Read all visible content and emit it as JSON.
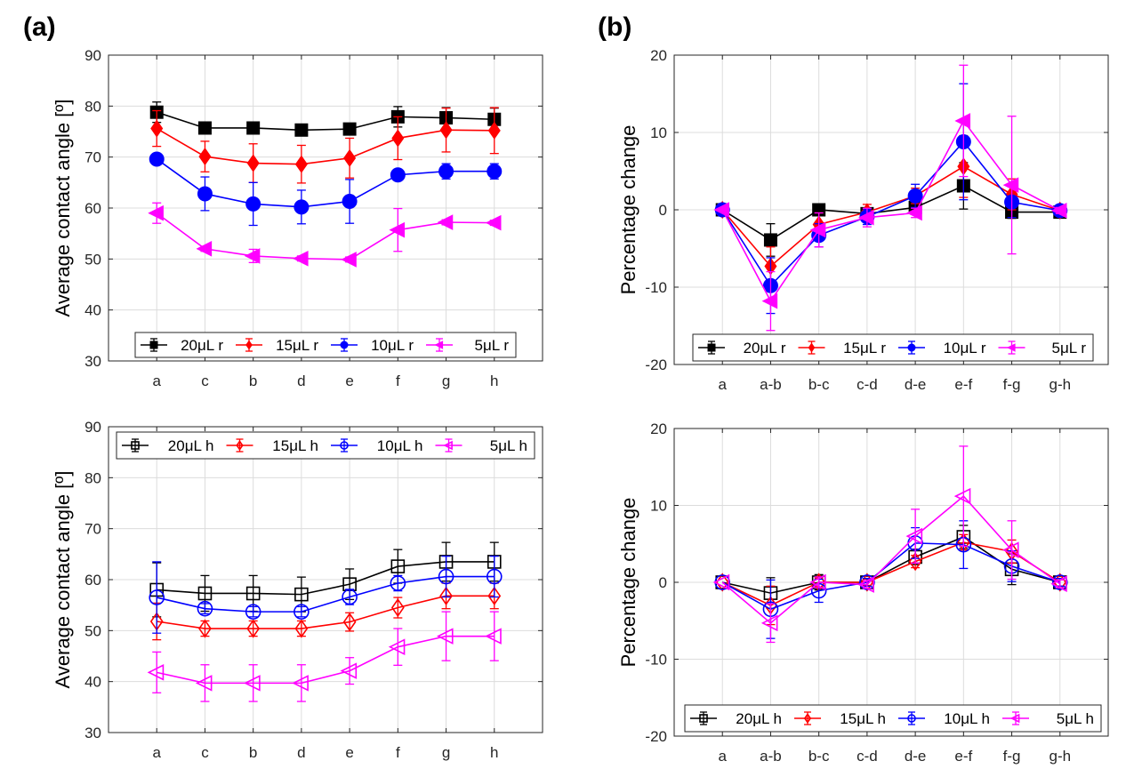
{
  "panel_labels": {
    "a": "(a)",
    "b": "(b)"
  },
  "chart_data": [
    {
      "id": "a_top",
      "type": "line",
      "ylabel": "Average contact angle [º]",
      "xlabel": "",
      "categories": [
        "a",
        "c",
        "b",
        "d",
        "e",
        "f",
        "g",
        "h"
      ],
      "ylim": [
        30,
        90
      ],
      "yticks": [
        30,
        40,
        50,
        60,
        70,
        80,
        90
      ],
      "grid": true,
      "legend_position": "bottom",
      "series": [
        {
          "name": "20μL r",
          "color": "#000000",
          "marker": "square",
          "filled": true,
          "values": [
            78.8,
            75.7,
            75.7,
            75.3,
            75.5,
            77.9,
            77.7,
            77.4
          ],
          "errors": [
            2.0,
            0.5,
            0.5,
            0.5,
            0.6,
            2.0,
            2.0,
            2.2
          ]
        },
        {
          "name": "15μL r",
          "color": "#ff0000",
          "marker": "diamond",
          "filled": true,
          "values": [
            75.6,
            70.1,
            68.8,
            68.6,
            69.8,
            73.7,
            75.3,
            75.2
          ],
          "errors": [
            3.5,
            3.0,
            3.8,
            3.7,
            3.9,
            4.2,
            4.3,
            4.5
          ]
        },
        {
          "name": "10μL r",
          "color": "#0000ff",
          "marker": "circle",
          "filled": true,
          "values": [
            69.6,
            62.8,
            60.8,
            60.2,
            61.3,
            66.5,
            67.2,
            67.2
          ],
          "errors": [
            0.6,
            3.3,
            4.2,
            3.3,
            4.3,
            0.6,
            1.5,
            1.5
          ]
        },
        {
          "name": "5μL r",
          "color": "#ff00ff",
          "marker": "triangle-left",
          "filled": true,
          "values": [
            59.0,
            52.0,
            50.6,
            50.1,
            49.9,
            55.7,
            57.2,
            57.1
          ],
          "errors": [
            2.0,
            0.5,
            1.3,
            0.5,
            0.5,
            4.2,
            0.5,
            0.5
          ]
        }
      ]
    },
    {
      "id": "a_bottom",
      "type": "line",
      "ylabel": "Average contact angle [º]",
      "xlabel": "",
      "categories": [
        "a",
        "c",
        "b",
        "d",
        "e",
        "f",
        "g",
        "h"
      ],
      "ylim": [
        30,
        90
      ],
      "yticks": [
        30,
        40,
        50,
        60,
        70,
        80,
        90
      ],
      "grid": true,
      "legend_position": "top",
      "series": [
        {
          "name": "20μL h",
          "color": "#000000",
          "marker": "square",
          "filled": false,
          "values": [
            58.0,
            57.3,
            57.3,
            57.1,
            59.1,
            62.6,
            63.5,
            63.5
          ],
          "errors": [
            5.3,
            3.5,
            3.5,
            3.4,
            3.0,
            3.3,
            3.8,
            3.8
          ]
        },
        {
          "name": "15μL h",
          "color": "#ff0000",
          "marker": "diamond",
          "filled": false,
          "values": [
            51.8,
            50.4,
            50.4,
            50.4,
            51.7,
            54.5,
            56.8,
            56.8
          ],
          "errors": [
            3.6,
            1.5,
            1.5,
            1.5,
            1.8,
            2.0,
            2.5,
            2.5
          ]
        },
        {
          "name": "10μL h",
          "color": "#0000ff",
          "marker": "circle",
          "filled": false,
          "values": [
            56.5,
            54.3,
            53.7,
            53.7,
            56.6,
            59.3,
            60.6,
            60.6
          ],
          "errors": [
            7.0,
            1.0,
            1.0,
            1.0,
            1.5,
            1.5,
            4.0,
            4.0
          ]
        },
        {
          "name": "5μL h",
          "color": "#ff00ff",
          "marker": "triangle-left",
          "filled": false,
          "values": [
            41.8,
            39.7,
            39.7,
            39.7,
            42.1,
            46.8,
            48.9,
            48.9
          ],
          "errors": [
            4.0,
            3.6,
            3.6,
            3.6,
            2.6,
            3.6,
            4.8,
            4.8
          ]
        }
      ]
    },
    {
      "id": "b_top",
      "type": "line",
      "ylabel": "Percentage change",
      "xlabel": "",
      "categories": [
        "a",
        "a-b",
        "b-c",
        "c-d",
        "d-e",
        "e-f",
        "f-g",
        "g-h"
      ],
      "ylim": [
        -20,
        20
      ],
      "yticks": [
        -20,
        -10,
        0,
        10,
        20
      ],
      "grid": true,
      "legend_position": "bottom",
      "series": [
        {
          "name": "20μL r",
          "color": "#000000",
          "marker": "square",
          "filled": true,
          "values": [
            0,
            -3.9,
            0,
            -0.5,
            0.3,
            3.1,
            -0.3,
            -0.3
          ],
          "errors": [
            0,
            2.1,
            0.4,
            0.6,
            0.8,
            3.0,
            0.8,
            0.5
          ]
        },
        {
          "name": "15μL r",
          "color": "#ff0000",
          "marker": "diamond",
          "filled": true,
          "values": [
            0,
            -7.3,
            -1.9,
            -0.3,
            1.8,
            5.6,
            2.0,
            -0.1
          ],
          "errors": [
            0,
            2.5,
            1.5,
            1.0,
            1.0,
            4.0,
            2.0,
            0.5
          ]
        },
        {
          "name": "10μL r",
          "color": "#0000ff",
          "marker": "circle",
          "filled": true,
          "values": [
            0,
            -9.8,
            -3.3,
            -0.9,
            1.8,
            8.8,
            1.0,
            -0.1
          ],
          "errors": [
            0,
            3.6,
            1.5,
            1.0,
            1.5,
            7.5,
            2.0,
            0.5
          ]
        },
        {
          "name": "5μL r",
          "color": "#ff00ff",
          "marker": "triangle-left",
          "filled": true,
          "values": [
            0,
            -11.8,
            -2.6,
            -1.0,
            -0.4,
            11.5,
            3.2,
            -0.1
          ],
          "errors": [
            0,
            3.8,
            2.2,
            1.2,
            0.6,
            7.2,
            8.9,
            0.4
          ]
        }
      ]
    },
    {
      "id": "b_bottom",
      "type": "line",
      "ylabel": "Percentage change",
      "xlabel": "",
      "categories": [
        "a",
        "a-b",
        "b-c",
        "c-d",
        "d-e",
        "e-f",
        "f-g",
        "g-h"
      ],
      "ylim": [
        -20,
        20
      ],
      "yticks": [
        -20,
        -10,
        0,
        10,
        20
      ],
      "grid": true,
      "legend_position": "bottom",
      "series": [
        {
          "name": "20μL h",
          "color": "#000000",
          "marker": "square",
          "filled": false,
          "values": [
            0,
            -1.4,
            0,
            0,
            3.3,
            5.9,
            1.7,
            0
          ],
          "errors": [
            0,
            2.0,
            1.0,
            0.5,
            1.0,
            1.5,
            2.0,
            0.5
          ]
        },
        {
          "name": "15μL h",
          "color": "#ff0000",
          "marker": "diamond",
          "filled": false,
          "values": [
            0,
            -3.0,
            0,
            0,
            2.7,
            5.2,
            4.0,
            0
          ],
          "errors": [
            0,
            2.5,
            0.6,
            0.4,
            0.8,
            1.0,
            1.5,
            0.5
          ]
        },
        {
          "name": "10μL h",
          "color": "#0000ff",
          "marker": "circle",
          "filled": false,
          "values": [
            0,
            -3.5,
            -1.1,
            0,
            5.1,
            4.9,
            2.1,
            0
          ],
          "errors": [
            0,
            3.8,
            1.5,
            0.5,
            2.0,
            3.1,
            2.0,
            0.5
          ]
        },
        {
          "name": "5μL h",
          "color": "#ff00ff",
          "marker": "triangle-left",
          "filled": false,
          "values": [
            0,
            -5.3,
            0,
            -0.3,
            6.0,
            11.2,
            4.2,
            -0.2
          ],
          "errors": [
            0,
            2.5,
            0.7,
            0.5,
            3.5,
            6.5,
            3.8,
            0.5
          ]
        }
      ]
    }
  ]
}
